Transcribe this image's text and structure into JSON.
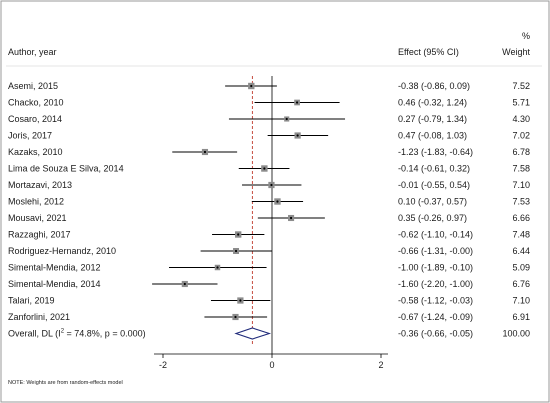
{
  "chart_data": {
    "type": "forest",
    "headers": {
      "study": "Author, year",
      "effect": "Effect (95% CI)",
      "weight_unit": "%",
      "weight": "Weight"
    },
    "studies": [
      {
        "label": "Asemi, 2015",
        "effect": -0.38,
        "lower": -0.86,
        "upper": 0.09,
        "ci_text": "-0.38 (-0.86, 0.09)",
        "weight": 7.52,
        "weight_text": "7.52"
      },
      {
        "label": "Chacko, 2010",
        "effect": 0.46,
        "lower": -0.32,
        "upper": 1.24,
        "ci_text": "0.46 (-0.32, 1.24)",
        "weight": 5.71,
        "weight_text": "5.71"
      },
      {
        "label": "Cosaro, 2014",
        "effect": 0.27,
        "lower": -0.79,
        "upper": 1.34,
        "ci_text": "0.27 (-0.79, 1.34)",
        "weight": 4.3,
        "weight_text": "4.30"
      },
      {
        "label": "Joris, 2017",
        "effect": 0.47,
        "lower": -0.08,
        "upper": 1.03,
        "ci_text": "0.47 (-0.08, 1.03)",
        "weight": 7.02,
        "weight_text": "7.02"
      },
      {
        "label": "Kazaks, 2010",
        "effect": -1.23,
        "lower": -1.83,
        "upper": -0.64,
        "ci_text": "-1.23 (-1.83, -0.64)",
        "weight": 6.78,
        "weight_text": "6.78"
      },
      {
        "label": "Lima de Souza E Silva, 2014",
        "effect": -0.14,
        "lower": -0.61,
        "upper": 0.32,
        "ci_text": "-0.14 (-0.61, 0.32)",
        "weight": 7.58,
        "weight_text": "7.58"
      },
      {
        "label": "Mortazavi, 2013",
        "effect": -0.01,
        "lower": -0.55,
        "upper": 0.54,
        "ci_text": "-0.01 (-0.55, 0.54)",
        "weight": 7.1,
        "weight_text": "7.10"
      },
      {
        "label": "Moslehi, 2012",
        "effect": 0.1,
        "lower": -0.37,
        "upper": 0.57,
        "ci_text": "0.10 (-0.37, 0.57)",
        "weight": 7.53,
        "weight_text": "7.53"
      },
      {
        "label": "Mousavi, 2021",
        "effect": 0.35,
        "lower": -0.26,
        "upper": 0.97,
        "ci_text": "0.35 (-0.26, 0.97)",
        "weight": 6.66,
        "weight_text": "6.66"
      },
      {
        "label": "Razzaghi, 2017",
        "effect": -0.62,
        "lower": -1.1,
        "upper": -0.14,
        "ci_text": "-0.62 (-1.10, -0.14)",
        "weight": 7.48,
        "weight_text": "7.48"
      },
      {
        "label": "Rodriguez-Hernandz, 2010",
        "effect": -0.66,
        "lower": -1.31,
        "upper": -0.0,
        "ci_text": "-0.66 (-1.31, -0.00)",
        "weight": 6.44,
        "weight_text": "6.44"
      },
      {
        "label": "Simental-Mendia, 2012",
        "effect": -1.0,
        "lower": -1.89,
        "upper": -0.1,
        "ci_text": "-1.00 (-1.89, -0.10)",
        "weight": 5.09,
        "weight_text": "5.09"
      },
      {
        "label": "Simental-Mendia, 2014",
        "effect": -1.6,
        "lower": -2.2,
        "upper": -1.0,
        "ci_text": "-1.60 (-2.20, -1.00)",
        "weight": 6.76,
        "weight_text": "6.76"
      },
      {
        "label": "Talari, 2019",
        "effect": -0.58,
        "lower": -1.12,
        "upper": -0.03,
        "ci_text": "-0.58 (-1.12, -0.03)",
        "weight": 7.1,
        "weight_text": "7.10"
      },
      {
        "label": "Zanforlini, 2021",
        "effect": -0.67,
        "lower": -1.24,
        "upper": -0.09,
        "ci_text": "-0.67 (-1.24, -0.09)",
        "weight": 6.91,
        "weight_text": "6.91"
      }
    ],
    "overall": {
      "label_prefix": "Overall, DL (I",
      "label_sup": "2",
      "label_suffix": " = 74.8%, p = 0.000)",
      "effect": -0.36,
      "lower": -0.66,
      "upper": -0.05,
      "ci_text": "-0.36 (-0.66, -0.05)",
      "weight": 100.0,
      "weight_text": "100.00"
    },
    "x_axis": {
      "ticks": [
        -2,
        0,
        2
      ],
      "tick_labels": [
        "-2",
        "0",
        "2"
      ],
      "range": [
        -2.2,
        2.1
      ]
    },
    "null_line": 0,
    "note": "NOTE: Weights are from random-effects model",
    "colors": {
      "background": "#ffffff",
      "frame": "#9a9a9a",
      "ci_line": "#000000",
      "point_box": "#8c8c8c",
      "diamond": "#1f2a7a",
      "overall_line": "#c0392b",
      "text": "#1a1a1a"
    }
  }
}
